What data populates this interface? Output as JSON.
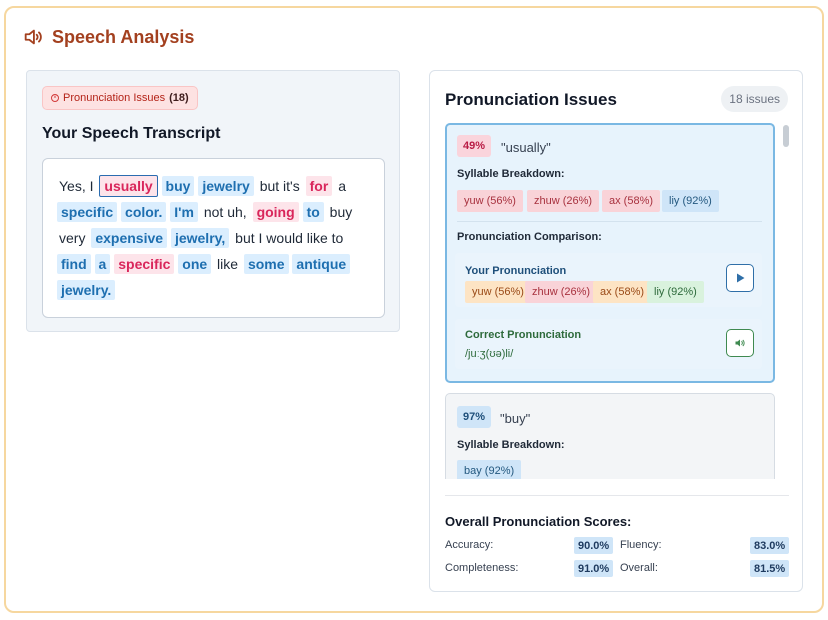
{
  "header": {
    "title": "Speech Analysis",
    "icon": "speaker-icon",
    "accent": "#a3401f"
  },
  "left": {
    "badge_label": "Pronunciation Issues",
    "badge_count": "(18)",
    "transcript_title": "Your Speech Transcript",
    "words": [
      {
        "t": "Yes, I",
        "k": "plain"
      },
      {
        "t": "usually",
        "k": "sel"
      },
      {
        "t": "buy",
        "k": "good"
      },
      {
        "t": "jewelry",
        "k": "good"
      },
      {
        "t": "but it's",
        "k": "plain"
      },
      {
        "t": "for",
        "k": "bad"
      },
      {
        "t": "a",
        "k": "plain"
      },
      {
        "t": "specific",
        "k": "good"
      },
      {
        "t": "color.",
        "k": "good"
      },
      {
        "t": "I'm",
        "k": "good"
      },
      {
        "t": "not uh,",
        "k": "plain"
      },
      {
        "t": "going",
        "k": "bad"
      },
      {
        "t": "to",
        "k": "good"
      },
      {
        "t": "buy",
        "k": "plain"
      },
      {
        "t": "very",
        "k": "plain"
      },
      {
        "t": "expensive",
        "k": "good"
      },
      {
        "t": "jewelry,",
        "k": "good"
      },
      {
        "t": "but I would like to",
        "k": "plain"
      },
      {
        "t": "find",
        "k": "good"
      },
      {
        "t": "a",
        "k": "good"
      },
      {
        "t": "specific",
        "k": "bad"
      },
      {
        "t": "one",
        "k": "good"
      },
      {
        "t": "like",
        "k": "plain"
      },
      {
        "t": "some",
        "k": "good"
      },
      {
        "t": "antique",
        "k": "good"
      },
      {
        "t": "jewelry.",
        "k": "good"
      }
    ]
  },
  "right": {
    "title": "Pronunciation Issues",
    "count": "18 issues",
    "card1": {
      "pct": "49%",
      "word": "\"usually\"",
      "syllable_label": "Syllable Breakdown:",
      "syllables": [
        "yuw (56%)",
        "zhuw (26%)",
        "ax (58%)",
        "liy (92%)"
      ],
      "comparison_label": "Pronunciation Comparison:",
      "yours_label": "Your Pronunciation",
      "yours": [
        "yuw (56%)",
        "zhuw (26%)",
        "ax (58%)",
        "liy (92%)"
      ],
      "correct_label": "Correct Pronunciation",
      "ipa": "/juːʒ(ʊə)li/"
    },
    "card2": {
      "pct": "97%",
      "word": "\"buy\"",
      "syllable_label": "Syllable Breakdown:",
      "syllables": [
        "bay (92%)"
      ]
    },
    "scores": {
      "title": "Overall Pronunciation Scores:",
      "accuracy_label": "Accuracy:",
      "accuracy": "90.0%",
      "fluency_label": "Fluency:",
      "fluency": "83.0%",
      "completeness_label": "Completeness:",
      "completeness": "91.0%",
      "overall_label": "Overall:",
      "overall": "81.5%"
    }
  }
}
